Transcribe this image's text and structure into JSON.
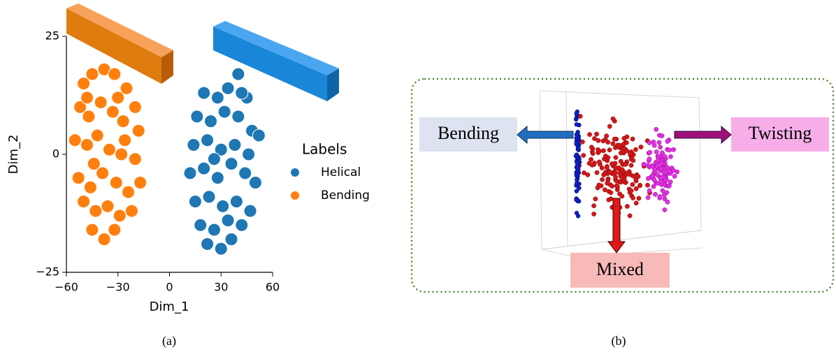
{
  "chart_data": {
    "type": "scatter",
    "x_label": "Dim_1",
    "y_label": "Dim_2",
    "legend_title": "Labels",
    "legend": "right",
    "xlim": [
      -60,
      60
    ],
    "ylim": [
      -25,
      25
    ],
    "xticks": [
      {
        "value": -60,
        "label": "−60"
      },
      {
        "value": -30,
        "label": "−30"
      },
      0,
      30,
      60
    ],
    "yticks": [
      {
        "value": -25,
        "label": "−25"
      },
      0,
      25
    ],
    "series": [
      {
        "name": "Helical",
        "color": "#1f77b4",
        "x": [
          40,
          34,
          28,
          20,
          45,
          16,
          24,
          32,
          40,
          48,
          14,
          22,
          30,
          38,
          46,
          52,
          12,
          20,
          28,
          36,
          44,
          50,
          15,
          23,
          31,
          39,
          47,
          18,
          26,
          34,
          42,
          22,
          30,
          36,
          26,
          42
        ],
        "y": [
          17,
          14,
          12,
          13,
          12,
          8,
          7,
          9,
          8,
          5,
          2,
          3,
          1,
          2,
          0,
          4,
          -4,
          -3,
          -5,
          -2,
          -4,
          -6,
          -10,
          -9,
          -11,
          -10,
          -12,
          -15,
          -16,
          -14,
          -15,
          -19,
          -20,
          -18,
          -1,
          13
        ]
      },
      {
        "name": "Bending",
        "color": "#ff7f0e",
        "x": [
          -50,
          -45,
          -38,
          -32,
          -25,
          -20,
          -52,
          -47,
          -40,
          -33,
          -27,
          -18,
          -55,
          -48,
          -42,
          -35,
          -28,
          -20,
          -53,
          -46,
          -39,
          -31,
          -24,
          -17,
          -50,
          -43,
          -36,
          -29,
          -22,
          -45,
          -38,
          -32,
          -48,
          -30,
          -44,
          -26
        ],
        "y": [
          15,
          17,
          18,
          17,
          14,
          10,
          10,
          8,
          11,
          9,
          7,
          5,
          3,
          2,
          4,
          1,
          0,
          -1,
          -5,
          -7,
          -4,
          -6,
          -8,
          -6,
          -10,
          -12,
          -11,
          -13,
          -12,
          -16,
          -18,
          -16,
          12,
          12,
          -2,
          3
        ]
      }
    ]
  },
  "diagram": {
    "labels": {
      "left": "Bending",
      "right": "Twisting",
      "bottom": "Mixed"
    }
  },
  "captions": [
    "(a)",
    "(b)"
  ]
}
